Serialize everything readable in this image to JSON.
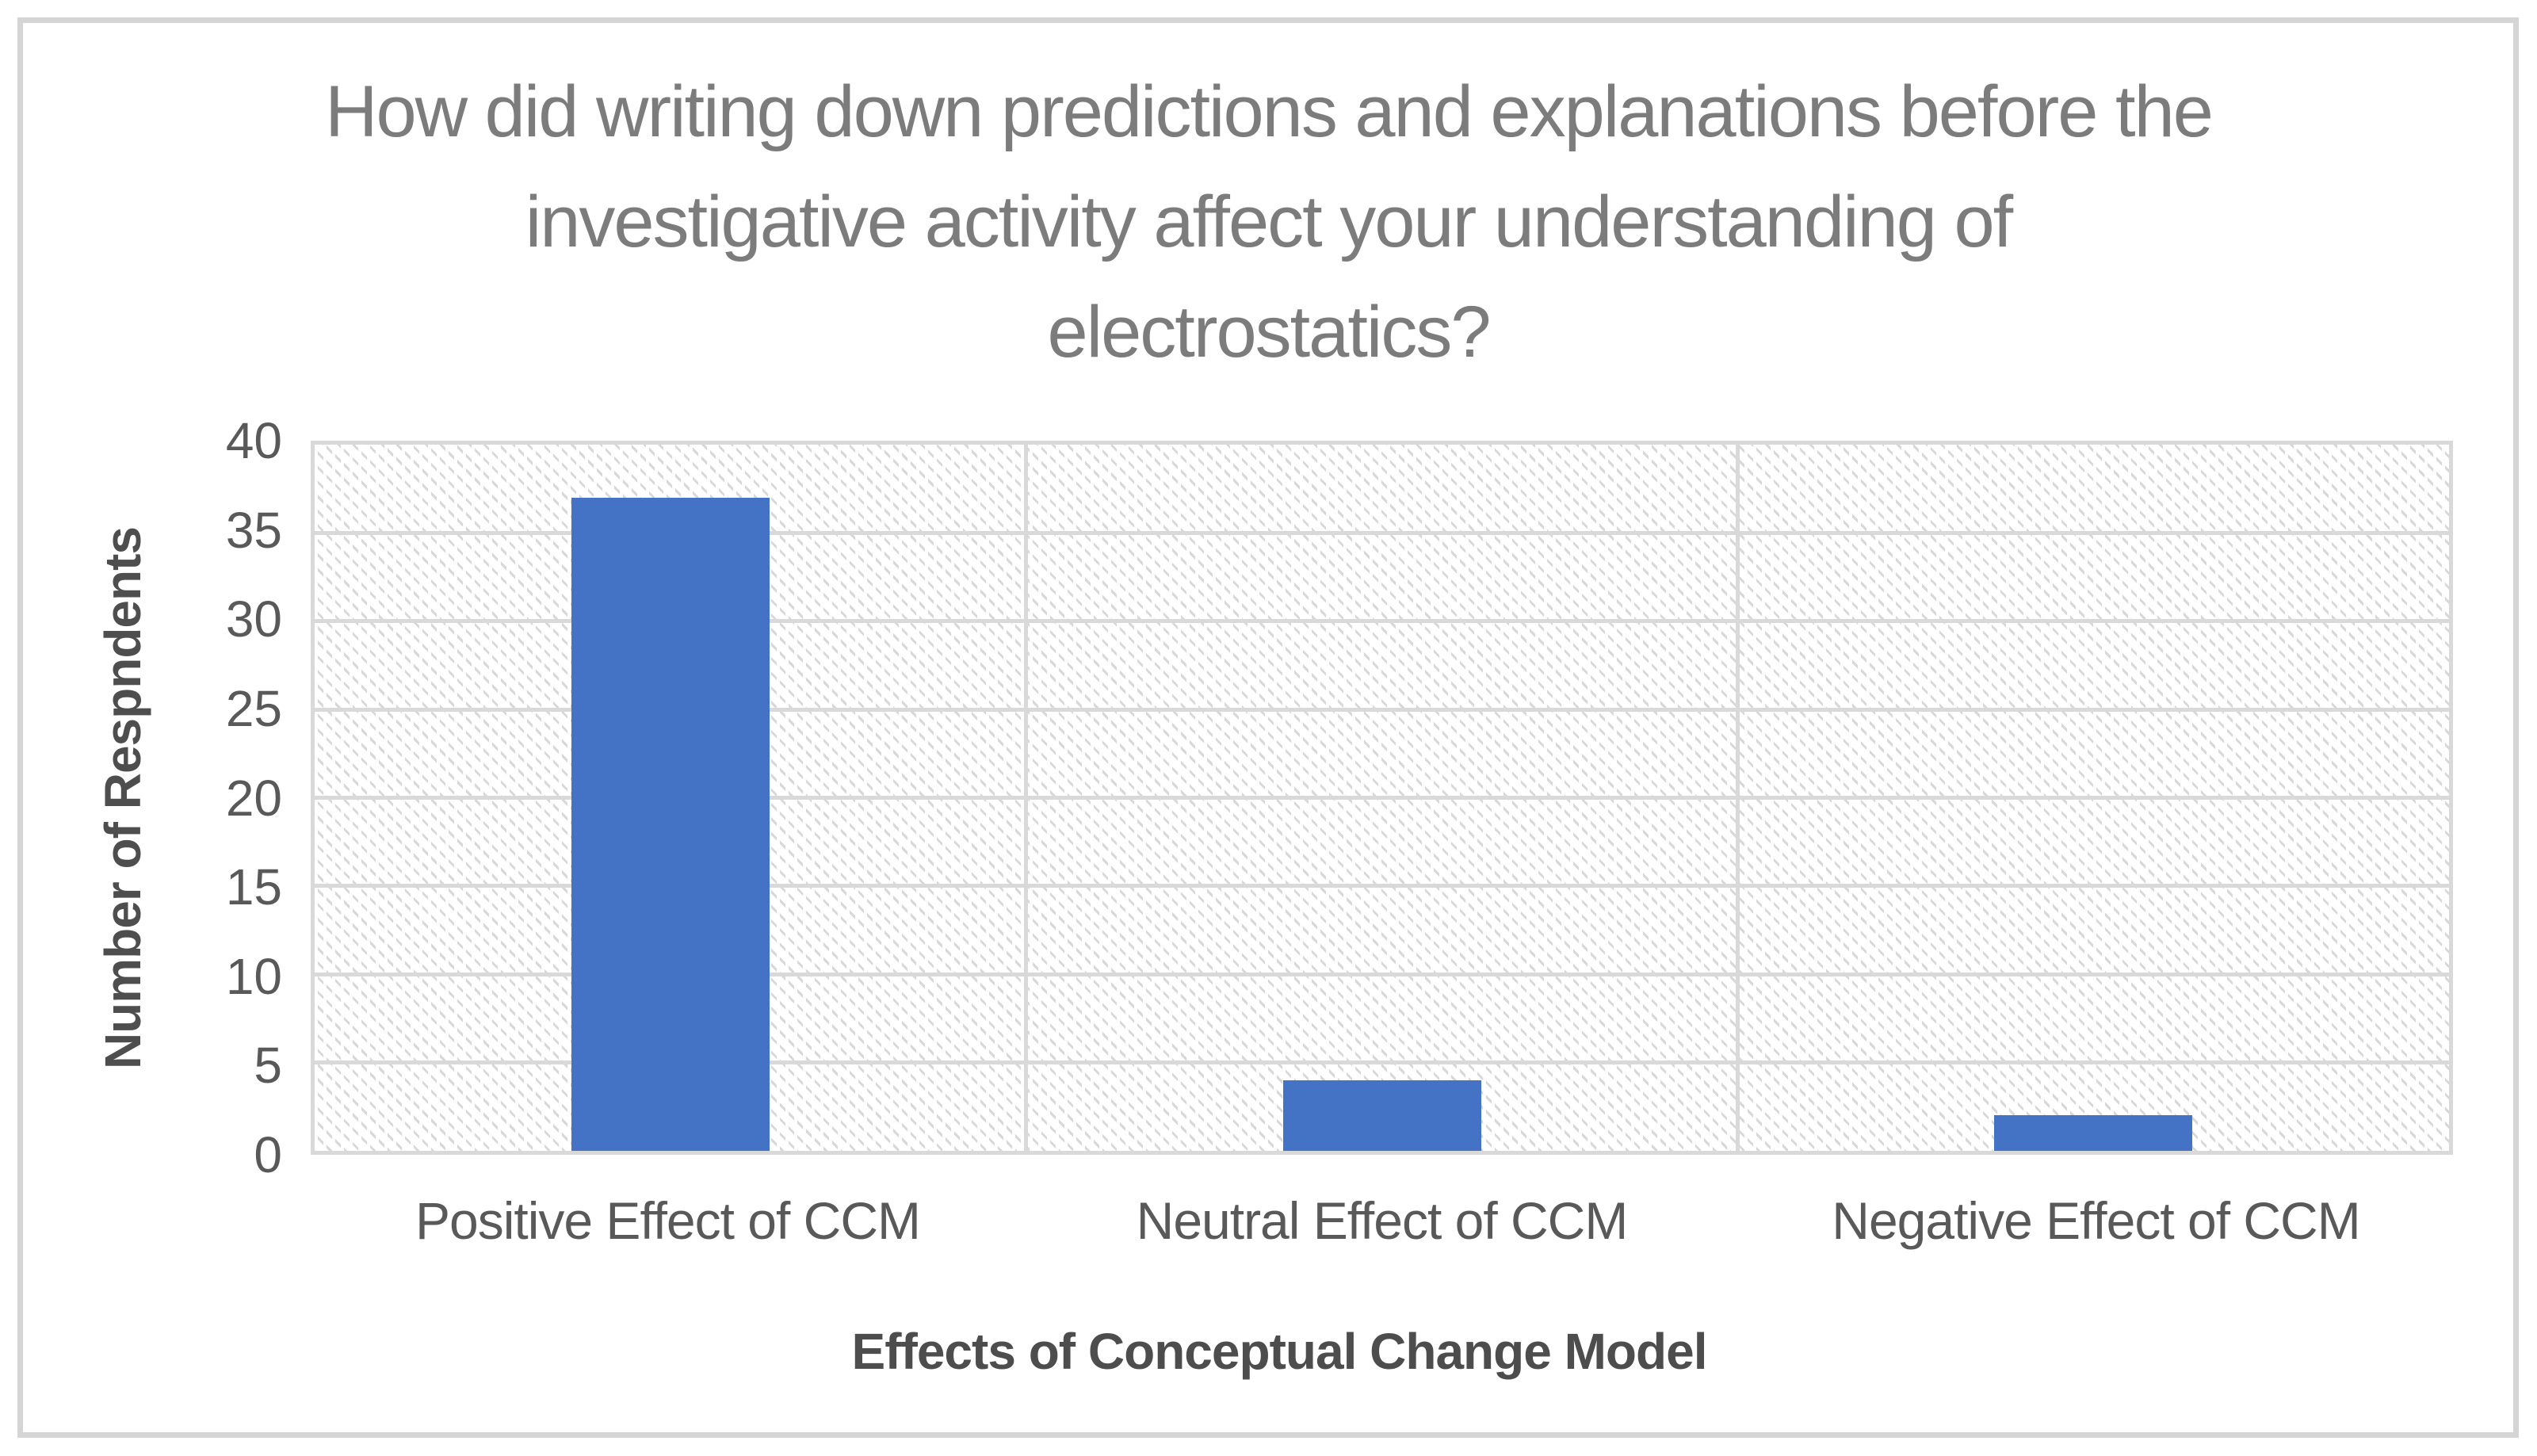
{
  "figure": {
    "border_color": "#D5D5D5",
    "background_color": "#FFFFFF"
  },
  "chart_data": {
    "type": "bar",
    "title": "How did writing down predictions and explanations before the\ninvestigative activity affect your understanding of\nelectrostatics?",
    "categories": [
      "Positive Effect of CCM",
      "Neutral Effect of CCM",
      "Negative Effect of CCM"
    ],
    "values": [
      37,
      4,
      2
    ],
    "xlabel": "Effects of Conceptual Change Model",
    "ylabel": "Number of Respndents",
    "ylim": [
      0,
      40
    ],
    "yticks": [
      0,
      5,
      10,
      15,
      20,
      25,
      30,
      35,
      40
    ],
    "grid": "horizontal major gridlines plus vertical category dividers, hatched plot background",
    "legend": "none",
    "colors": {
      "bar": "#4472C4",
      "gridline": "#D9D9D9",
      "hatch": "#D8D8D8",
      "title_text": "#7C7C7C",
      "tick_text": "#595959",
      "axis_title_text": "#4E4E4E"
    }
  }
}
